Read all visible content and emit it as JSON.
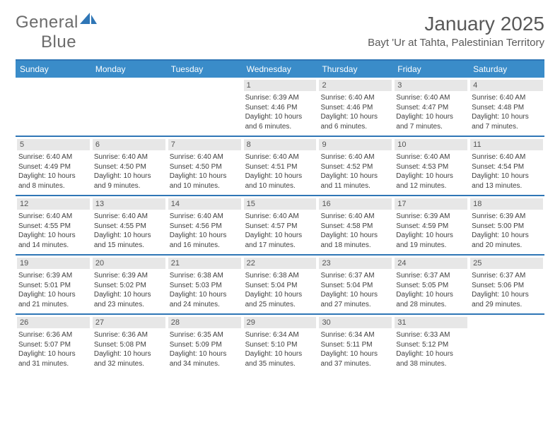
{
  "logo": {
    "text_a": "General",
    "text_b": "Blue",
    "icon_color": "#2f76b6"
  },
  "header": {
    "month_title": "January 2025",
    "location": "Bayt 'Ur at Tahta, Palestinian Territory"
  },
  "colors": {
    "header_bar": "#3a8cc9",
    "week_divider": "#2f76b6",
    "daynum_bg": "#e7e7e7",
    "text": "#404040"
  },
  "days_of_week": [
    "Sunday",
    "Monday",
    "Tuesday",
    "Wednesday",
    "Thursday",
    "Friday",
    "Saturday"
  ],
  "weeks": [
    [
      null,
      null,
      null,
      {
        "n": "1",
        "sunrise": "6:39 AM",
        "sunset": "4:46 PM",
        "dl1": "10 hours",
        "dl2": "and 6 minutes."
      },
      {
        "n": "2",
        "sunrise": "6:40 AM",
        "sunset": "4:46 PM",
        "dl1": "10 hours",
        "dl2": "and 6 minutes."
      },
      {
        "n": "3",
        "sunrise": "6:40 AM",
        "sunset": "4:47 PM",
        "dl1": "10 hours",
        "dl2": "and 7 minutes."
      },
      {
        "n": "4",
        "sunrise": "6:40 AM",
        "sunset": "4:48 PM",
        "dl1": "10 hours",
        "dl2": "and 7 minutes."
      }
    ],
    [
      {
        "n": "5",
        "sunrise": "6:40 AM",
        "sunset": "4:49 PM",
        "dl1": "10 hours",
        "dl2": "and 8 minutes."
      },
      {
        "n": "6",
        "sunrise": "6:40 AM",
        "sunset": "4:50 PM",
        "dl1": "10 hours",
        "dl2": "and 9 minutes."
      },
      {
        "n": "7",
        "sunrise": "6:40 AM",
        "sunset": "4:50 PM",
        "dl1": "10 hours",
        "dl2": "and 10 minutes."
      },
      {
        "n": "8",
        "sunrise": "6:40 AM",
        "sunset": "4:51 PM",
        "dl1": "10 hours",
        "dl2": "and 10 minutes."
      },
      {
        "n": "9",
        "sunrise": "6:40 AM",
        "sunset": "4:52 PM",
        "dl1": "10 hours",
        "dl2": "and 11 minutes."
      },
      {
        "n": "10",
        "sunrise": "6:40 AM",
        "sunset": "4:53 PM",
        "dl1": "10 hours",
        "dl2": "and 12 minutes."
      },
      {
        "n": "11",
        "sunrise": "6:40 AM",
        "sunset": "4:54 PM",
        "dl1": "10 hours",
        "dl2": "and 13 minutes."
      }
    ],
    [
      {
        "n": "12",
        "sunrise": "6:40 AM",
        "sunset": "4:55 PM",
        "dl1": "10 hours",
        "dl2": "and 14 minutes."
      },
      {
        "n": "13",
        "sunrise": "6:40 AM",
        "sunset": "4:55 PM",
        "dl1": "10 hours",
        "dl2": "and 15 minutes."
      },
      {
        "n": "14",
        "sunrise": "6:40 AM",
        "sunset": "4:56 PM",
        "dl1": "10 hours",
        "dl2": "and 16 minutes."
      },
      {
        "n": "15",
        "sunrise": "6:40 AM",
        "sunset": "4:57 PM",
        "dl1": "10 hours",
        "dl2": "and 17 minutes."
      },
      {
        "n": "16",
        "sunrise": "6:40 AM",
        "sunset": "4:58 PM",
        "dl1": "10 hours",
        "dl2": "and 18 minutes."
      },
      {
        "n": "17",
        "sunrise": "6:39 AM",
        "sunset": "4:59 PM",
        "dl1": "10 hours",
        "dl2": "and 19 minutes."
      },
      {
        "n": "18",
        "sunrise": "6:39 AM",
        "sunset": "5:00 PM",
        "dl1": "10 hours",
        "dl2": "and 20 minutes."
      }
    ],
    [
      {
        "n": "19",
        "sunrise": "6:39 AM",
        "sunset": "5:01 PM",
        "dl1": "10 hours",
        "dl2": "and 21 minutes."
      },
      {
        "n": "20",
        "sunrise": "6:39 AM",
        "sunset": "5:02 PM",
        "dl1": "10 hours",
        "dl2": "and 23 minutes."
      },
      {
        "n": "21",
        "sunrise": "6:38 AM",
        "sunset": "5:03 PM",
        "dl1": "10 hours",
        "dl2": "and 24 minutes."
      },
      {
        "n": "22",
        "sunrise": "6:38 AM",
        "sunset": "5:04 PM",
        "dl1": "10 hours",
        "dl2": "and 25 minutes."
      },
      {
        "n": "23",
        "sunrise": "6:37 AM",
        "sunset": "5:04 PM",
        "dl1": "10 hours",
        "dl2": "and 27 minutes."
      },
      {
        "n": "24",
        "sunrise": "6:37 AM",
        "sunset": "5:05 PM",
        "dl1": "10 hours",
        "dl2": "and 28 minutes."
      },
      {
        "n": "25",
        "sunrise": "6:37 AM",
        "sunset": "5:06 PM",
        "dl1": "10 hours",
        "dl2": "and 29 minutes."
      }
    ],
    [
      {
        "n": "26",
        "sunrise": "6:36 AM",
        "sunset": "5:07 PM",
        "dl1": "10 hours",
        "dl2": "and 31 minutes."
      },
      {
        "n": "27",
        "sunrise": "6:36 AM",
        "sunset": "5:08 PM",
        "dl1": "10 hours",
        "dl2": "and 32 minutes."
      },
      {
        "n": "28",
        "sunrise": "6:35 AM",
        "sunset": "5:09 PM",
        "dl1": "10 hours",
        "dl2": "and 34 minutes."
      },
      {
        "n": "29",
        "sunrise": "6:34 AM",
        "sunset": "5:10 PM",
        "dl1": "10 hours",
        "dl2": "and 35 minutes."
      },
      {
        "n": "30",
        "sunrise": "6:34 AM",
        "sunset": "5:11 PM",
        "dl1": "10 hours",
        "dl2": "and 37 minutes."
      },
      {
        "n": "31",
        "sunrise": "6:33 AM",
        "sunset": "5:12 PM",
        "dl1": "10 hours",
        "dl2": "and 38 minutes."
      },
      null
    ]
  ],
  "labels": {
    "sunrise_prefix": "Sunrise: ",
    "sunset_prefix": "Sunset: ",
    "daylight_prefix": "Daylight: "
  }
}
